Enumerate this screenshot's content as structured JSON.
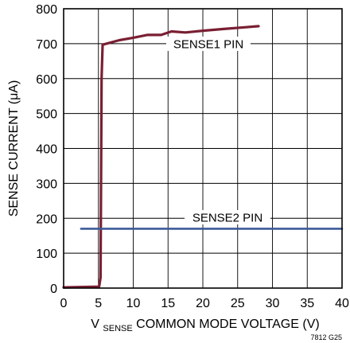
{
  "chart_data": {
    "type": "line",
    "xlabel_main": "V",
    "xlabel_sub": "SENSE",
    "xlabel_rest": " COMMON MODE VOLTAGE (V)",
    "ylabel": "SENSE CURRENT (μA)",
    "xlim": [
      0,
      40
    ],
    "ylim": [
      0,
      800
    ],
    "x_ticks": [
      0,
      5,
      10,
      15,
      20,
      25,
      30,
      35,
      40
    ],
    "y_ticks": [
      0,
      100,
      200,
      300,
      400,
      500,
      600,
      700,
      800
    ],
    "grid": true,
    "series": [
      {
        "name": "SENSE1 PIN",
        "color": "#7a1f33",
        "points": [
          [
            0,
            2
          ],
          [
            5.1,
            4
          ],
          [
            5.3,
            30
          ],
          [
            5.45,
            600
          ],
          [
            5.6,
            697
          ],
          [
            8,
            710
          ],
          [
            10,
            717
          ],
          [
            12,
            725
          ],
          [
            14,
            725
          ],
          [
            15.5,
            735
          ],
          [
            17.5,
            732
          ],
          [
            20,
            737
          ],
          [
            23,
            742
          ],
          [
            26,
            747
          ],
          [
            28,
            750
          ]
        ]
      },
      {
        "name": "SENSE2 PIN",
        "color": "#3d5a99",
        "points": [
          [
            2.5,
            170
          ],
          [
            40,
            170
          ]
        ]
      }
    ],
    "footnote": "7812 G25"
  }
}
